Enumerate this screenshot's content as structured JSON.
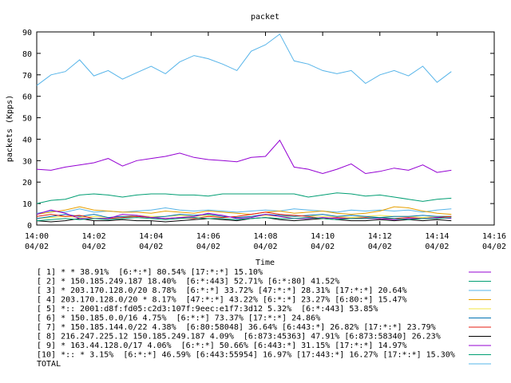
{
  "chart_data": {
    "type": "line",
    "title": "packet",
    "xlabel": "Time",
    "ylabel": "packets (Kpps)",
    "ylim": [
      0,
      90
    ],
    "yticks": [
      0,
      10,
      20,
      30,
      40,
      50,
      60,
      70,
      80,
      90
    ],
    "xlim_minutes": [
      0,
      16
    ],
    "xticks": [
      {
        "minute": 0,
        "time": "14:00",
        "date": "04/02"
      },
      {
        "minute": 2,
        "time": "14:02",
        "date": "04/02"
      },
      {
        "minute": 4,
        "time": "14:04",
        "date": "04/02"
      },
      {
        "minute": 6,
        "time": "14:06",
        "date": "04/02"
      },
      {
        "minute": 8,
        "time": "14:08",
        "date": "04/02"
      },
      {
        "minute": 10,
        "time": "14:10",
        "date": "04/02"
      },
      {
        "minute": 12,
        "time": "14:12",
        "date": "04/02"
      },
      {
        "minute": 14,
        "time": "14:14",
        "date": "04/02"
      },
      {
        "minute": 16,
        "time": "14:16",
        "date": "04/02"
      }
    ],
    "x_minutes": [
      0,
      0.5,
      1,
      1.5,
      2,
      2.5,
      3,
      3.5,
      4,
      4.5,
      5,
      5.5,
      6,
      6.5,
      7,
      7.5,
      8,
      8.5,
      9,
      9.5,
      10,
      10.5,
      11,
      11.5,
      12,
      12.5,
      13,
      13.5,
      14,
      14.5
    ],
    "legend_placement": "bottom",
    "grid": false,
    "series": [
      {
        "name": "[ 1] * * 38.91%  [6:*:*] 80.54% [17:*:*] 15.10%",
        "color": "#9400d3",
        "values": [
          26,
          25.5,
          27,
          28,
          29,
          31,
          27.5,
          30,
          31,
          32,
          33.5,
          31.5,
          30.5,
          30,
          29.5,
          31.5,
          32,
          39.5,
          27,
          26,
          24,
          26,
          28.5,
          24,
          25,
          26.5,
          25.5,
          28,
          24.5,
          25.5
        ]
      },
      {
        "name": "[ 2] * 150.185.249.187 18.40%  [6:*:443] 52.71% [6:*:80] 41.52%",
        "color": "#009e73",
        "values": [
          10,
          11.5,
          12,
          14,
          14.5,
          14,
          13,
          14,
          14.5,
          14.5,
          14,
          14,
          13.5,
          14.5,
          14.5,
          14.5,
          14.5,
          14.5,
          14.5,
          13,
          14,
          15,
          14.5,
          13.5,
          14,
          13,
          12,
          11,
          12,
          12.5
        ]
      },
      {
        "name": "[ 3] * 203.170.128.0/20 8.78%  [6:*:*] 33.72% [47:*:*] 28.31% [17:*:*] 20.64%",
        "color": "#56b4e9",
        "values": [
          5.5,
          6.5,
          6,
          7.5,
          6,
          6.5,
          6,
          6.5,
          7,
          8,
          7,
          6.5,
          7,
          6.5,
          6,
          6.5,
          7,
          6.5,
          7.5,
          7,
          6.5,
          6,
          7,
          6.5,
          7,
          6.5,
          7,
          6,
          7,
          7.5
        ]
      },
      {
        "name": "[ 4] 203.170.128.0/20 * 8.17%  [47:*:*] 43.22% [6:*:*] 23.27% [6:80:*] 15.47%",
        "color": "#e69f00",
        "values": [
          5,
          6,
          7,
          8.5,
          7,
          6.5,
          6,
          6,
          5.5,
          6.5,
          6,
          5.5,
          6.5,
          6,
          5.5,
          5,
          6,
          6.5,
          5.5,
          6,
          6.5,
          5.5,
          5,
          5.5,
          6.5,
          8.5,
          8,
          6.5,
          5.5,
          5
        ]
      },
      {
        "name": "[ 5] *:: 2001:d8f:fd05:c2d3:107f:9eec:e1f7:3d12 5.32%  [6:*:443] 53.85%",
        "color": "#f0e442",
        "values": [
          3,
          3.5,
          4,
          3.5,
          4,
          3.5,
          4,
          4.5,
          4,
          4,
          4.5,
          4,
          4.5,
          4,
          3.5,
          4,
          4.5,
          4,
          4,
          4.5,
          4,
          4,
          3.5,
          4,
          4.5,
          4,
          4,
          3.5,
          4,
          4
        ]
      },
      {
        "name": "[ 6] * 150.185.0.0/16 4.75%  [6:*:*] 73.37% [17:*:*] 24.86%",
        "color": "#0072b2",
        "values": [
          3,
          4,
          5,
          4,
          5,
          3.5,
          4,
          4,
          3.5,
          4,
          5,
          4.5,
          5,
          4,
          3.5,
          4,
          5,
          4.5,
          4,
          4.5,
          5,
          4,
          4.5,
          4,
          3.5,
          4,
          4,
          4.5,
          4,
          4
        ]
      },
      {
        "name": "[ 7] * 150.185.144.0/22 4.38%  [6:80:58048] 36.64% [6:443:*] 26.82% [17:*:*] 23.79%",
        "color": "#e51e10",
        "values": [
          4,
          5,
          4,
          4.5,
          3,
          3,
          3.5,
          4,
          3.5,
          3,
          3.5,
          3,
          4,
          3.5,
          4,
          5,
          6,
          5,
          4.5,
          4,
          3,
          3.5,
          3,
          3.5,
          3,
          3,
          3.5,
          3,
          3.5,
          4
        ]
      },
      {
        "name": "[ 8] 216.247.225.12 150.185.249.187 4.09%  [6:873:45363] 47.91% [6:873:58340] 26.23%",
        "color": "#000000",
        "values": [
          2,
          1.5,
          2,
          3,
          2,
          2,
          2.5,
          2,
          2,
          1.5,
          2,
          2.5,
          3,
          2.5,
          2,
          3,
          3.5,
          2.5,
          2,
          2.5,
          3,
          2.5,
          2,
          2,
          2.5,
          2,
          2.5,
          2,
          2.5,
          2
        ]
      },
      {
        "name": "[ 9] * 163.44.128.0/17 4.06%  [6:*:*] 50.66% [6:443:*] 31.15% [17:*:*] 14.97%",
        "color": "#9400d3",
        "values": [
          5,
          7,
          5.5,
          3,
          3,
          3,
          5,
          4.5,
          3.5,
          3,
          3.5,
          4,
          5.5,
          4.5,
          3,
          3.5,
          5,
          4,
          3,
          3,
          3.5,
          3,
          3,
          3,
          3,
          2.5,
          3,
          3,
          3.5,
          3
        ]
      },
      {
        "name": "[10] *:: * 3.15%  [6:*:*] 46.59% [6:443:55954] 16.97% [17:443:*] 16.27% [17:*:*] 15.30%",
        "color": "#009e73",
        "values": [
          2,
          2.5,
          3,
          2.5,
          3,
          2.5,
          3,
          3.5,
          3,
          2.5,
          3,
          3.5,
          3,
          3,
          2.5,
          3,
          3.5,
          3,
          3,
          3.5,
          3,
          2.5,
          3,
          3,
          3.5,
          3,
          2.5,
          3,
          3,
          3.5
        ]
      },
      {
        "name": "TOTAL",
        "color": "#56b4e9",
        "values": [
          65,
          70,
          71.5,
          77,
          69.5,
          72,
          68,
          71,
          74,
          70.5,
          76,
          79,
          77.5,
          75,
          72,
          81,
          84,
          89,
          76.5,
          75,
          72,
          70.5,
          72,
          66,
          70,
          72,
          69.5,
          74,
          66.5,
          71.5
        ]
      }
    ]
  }
}
